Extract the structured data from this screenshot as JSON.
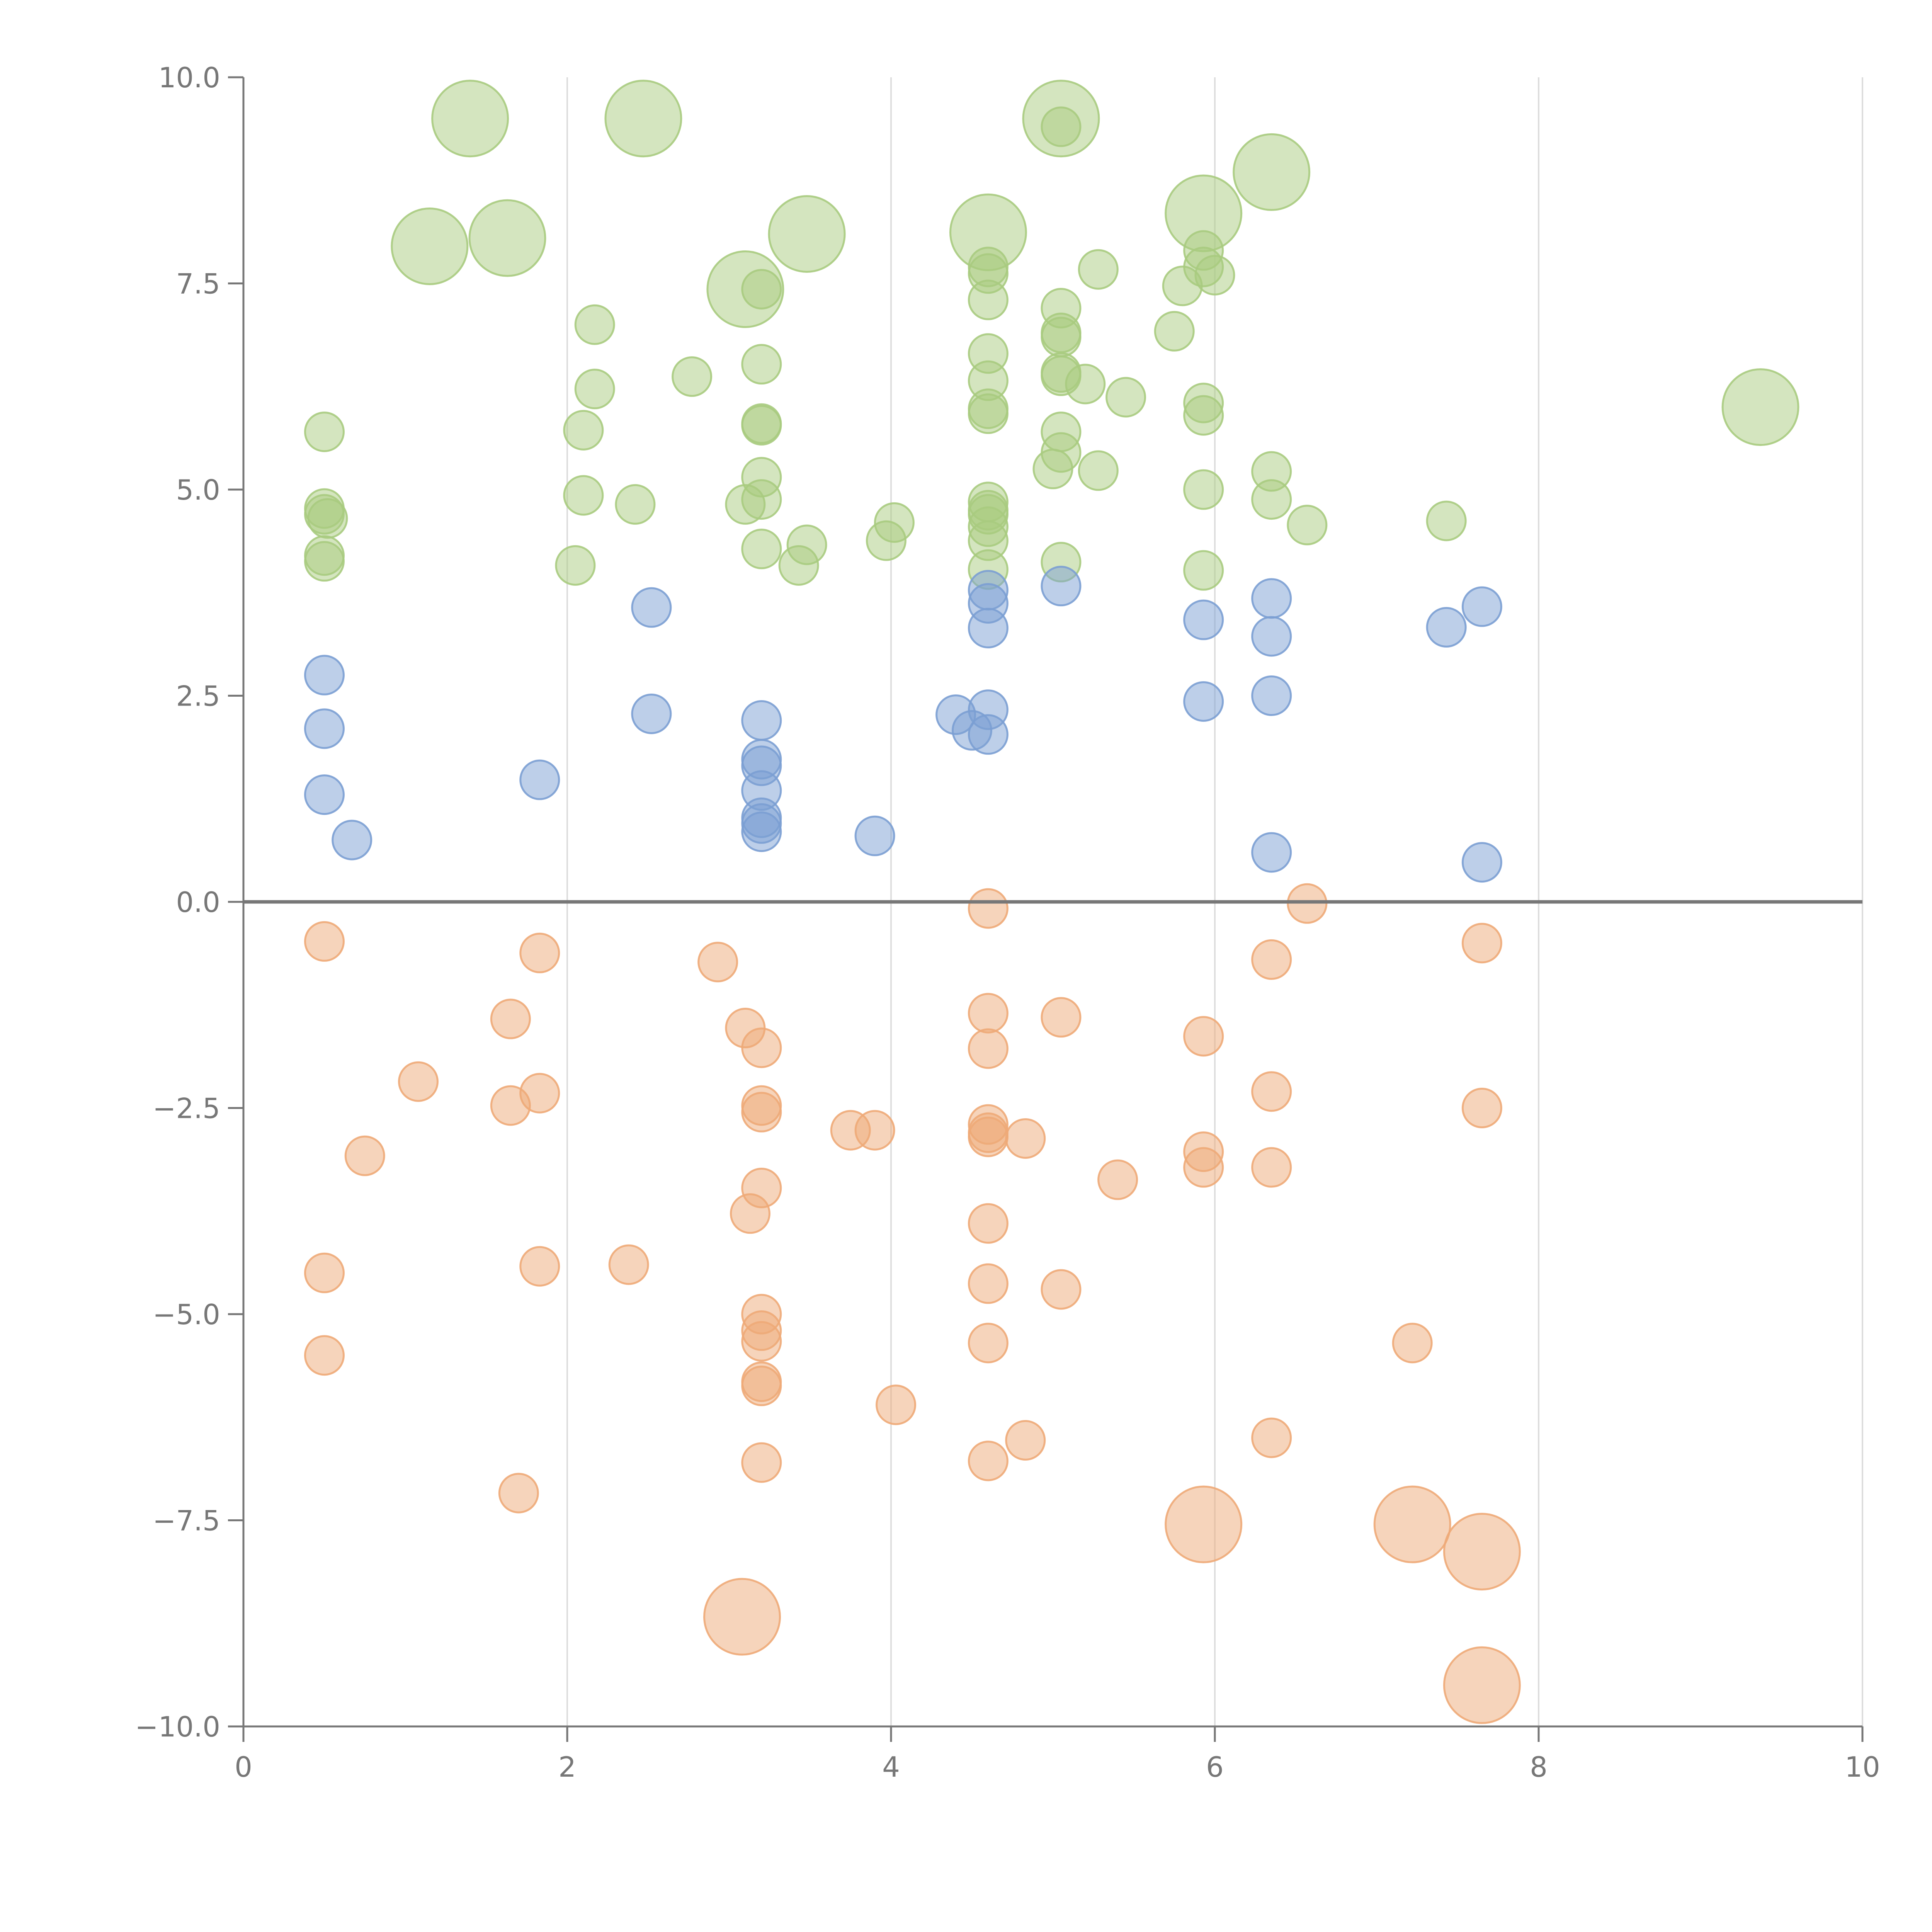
{
  "chart_data": {
    "type": "scatter",
    "title": "",
    "xlabel": "",
    "ylabel": "",
    "xlim": [
      0,
      10
    ],
    "ylim": [
      -10,
      10
    ],
    "x_ticks": [
      "0",
      "2",
      "4",
      "6",
      "8",
      "10"
    ],
    "y_ticks": [
      "10.0",
      "7.5",
      "5.0",
      "2.5",
      "0.0",
      "−2.5",
      "−5.0",
      "−7.5",
      "−10.0"
    ],
    "x_tick_values": [
      0,
      2,
      4,
      6,
      8,
      10
    ],
    "y_tick_values": [
      10,
      7.5,
      5,
      2.5,
      0,
      -2.5,
      -5,
      -7.5,
      -10
    ],
    "grid": "vertical",
    "legend": "none",
    "series": [
      {
        "color": "#a9cb7f",
        "points": [
          {
            "x": 1.4,
            "y": 9.5,
            "size": "large"
          },
          {
            "x": 2.47,
            "y": 9.5,
            "size": "large"
          },
          {
            "x": 5.05,
            "y": 9.5,
            "size": "large"
          },
          {
            "x": 5.05,
            "y": 9.4,
            "size": "small"
          },
          {
            "x": 6.35,
            "y": 8.85,
            "size": "large"
          },
          {
            "x": 5.93,
            "y": 8.35,
            "size": "large"
          },
          {
            "x": 1.15,
            "y": 7.95,
            "size": "large"
          },
          {
            "x": 1.63,
            "y": 8.05,
            "size": "large"
          },
          {
            "x": 3.48,
            "y": 8.1,
            "size": "large"
          },
          {
            "x": 4.6,
            "y": 8.12,
            "size": "large"
          },
          {
            "x": 3.1,
            "y": 7.43,
            "size": "large"
          },
          {
            "x": 9.37,
            "y": 6.0,
            "size": "large"
          },
          {
            "x": 4.6,
            "y": 7.7,
            "size": "small"
          },
          {
            "x": 4.6,
            "y": 7.62,
            "size": "small"
          },
          {
            "x": 4.6,
            "y": 7.3,
            "size": "small"
          },
          {
            "x": 5.28,
            "y": 7.67,
            "size": "small"
          },
          {
            "x": 5.93,
            "y": 7.9,
            "size": "small"
          },
          {
            "x": 5.93,
            "y": 7.7,
            "size": "small"
          },
          {
            "x": 6.0,
            "y": 7.6,
            "size": "small"
          },
          {
            "x": 5.8,
            "y": 7.47,
            "size": "small"
          },
          {
            "x": 3.2,
            "y": 7.43,
            "size": "small"
          },
          {
            "x": 2.17,
            "y": 7.0,
            "size": "small"
          },
          {
            "x": 5.05,
            "y": 7.2,
            "size": "small"
          },
          {
            "x": 5.05,
            "y": 6.9,
            "size": "small"
          },
          {
            "x": 5.05,
            "y": 6.85,
            "size": "small"
          },
          {
            "x": 5.75,
            "y": 6.92,
            "size": "small"
          },
          {
            "x": 4.6,
            "y": 6.65,
            "size": "small"
          },
          {
            "x": 3.2,
            "y": 6.52,
            "size": "small"
          },
          {
            "x": 2.77,
            "y": 6.37,
            "size": "small"
          },
          {
            "x": 4.6,
            "y": 6.32,
            "size": "small"
          },
          {
            "x": 5.05,
            "y": 6.38,
            "size": "small"
          },
          {
            "x": 5.05,
            "y": 6.42,
            "size": "small"
          },
          {
            "x": 5.2,
            "y": 6.28,
            "size": "small"
          },
          {
            "x": 5.45,
            "y": 6.12,
            "size": "small"
          },
          {
            "x": 2.17,
            "y": 6.22,
            "size": "small"
          },
          {
            "x": 4.6,
            "y": 5.98,
            "size": "small"
          },
          {
            "x": 4.6,
            "y": 5.92,
            "size": "small"
          },
          {
            "x": 5.93,
            "y": 6.05,
            "size": "small"
          },
          {
            "x": 5.93,
            "y": 5.9,
            "size": "small"
          },
          {
            "x": 3.2,
            "y": 5.8,
            "size": "small"
          },
          {
            "x": 3.2,
            "y": 5.78,
            "size": "small"
          },
          {
            "x": 2.1,
            "y": 5.72,
            "size": "small"
          },
          {
            "x": 0.5,
            "y": 5.7,
            "size": "small"
          },
          {
            "x": 5.05,
            "y": 5.7,
            "size": "small"
          },
          {
            "x": 5.05,
            "y": 5.45,
            "size": "small"
          },
          {
            "x": 5.0,
            "y": 5.25,
            "size": "small"
          },
          {
            "x": 5.28,
            "y": 5.23,
            "size": "small"
          },
          {
            "x": 6.35,
            "y": 5.22,
            "size": "small"
          },
          {
            "x": 3.2,
            "y": 5.15,
            "size": "small"
          },
          {
            "x": 5.93,
            "y": 5.0,
            "size": "small"
          },
          {
            "x": 2.1,
            "y": 4.93,
            "size": "small"
          },
          {
            "x": 3.2,
            "y": 4.88,
            "size": "small"
          },
          {
            "x": 6.35,
            "y": 4.88,
            "size": "small"
          },
          {
            "x": 3.1,
            "y": 4.82,
            "size": "small"
          },
          {
            "x": 2.42,
            "y": 4.82,
            "size": "small"
          },
          {
            "x": 4.6,
            "y": 4.85,
            "size": "small"
          },
          {
            "x": 4.6,
            "y": 4.75,
            "size": "small"
          },
          {
            "x": 4.6,
            "y": 4.7,
            "size": "small"
          },
          {
            "x": 0.5,
            "y": 4.77,
            "size": "small"
          },
          {
            "x": 0.5,
            "y": 4.7,
            "size": "small"
          },
          {
            "x": 0.52,
            "y": 4.65,
            "size": "small"
          },
          {
            "x": 7.43,
            "y": 4.62,
            "size": "small"
          },
          {
            "x": 4.02,
            "y": 4.6,
            "size": "small"
          },
          {
            "x": 6.57,
            "y": 4.57,
            "size": "small"
          },
          {
            "x": 4.6,
            "y": 4.55,
            "size": "small"
          },
          {
            "x": 4.6,
            "y": 4.38,
            "size": "small"
          },
          {
            "x": 3.48,
            "y": 4.33,
            "size": "small"
          },
          {
            "x": 3.97,
            "y": 4.38,
            "size": "small"
          },
          {
            "x": 3.2,
            "y": 4.28,
            "size": "small"
          },
          {
            "x": 0.5,
            "y": 4.2,
            "size": "small"
          },
          {
            "x": 0.5,
            "y": 4.13,
            "size": "small"
          },
          {
            "x": 5.05,
            "y": 4.12,
            "size": "small"
          },
          {
            "x": 2.05,
            "y": 4.08,
            "size": "small"
          },
          {
            "x": 3.43,
            "y": 4.08,
            "size": "small"
          },
          {
            "x": 4.6,
            "y": 4.03,
            "size": "small"
          },
          {
            "x": 5.93,
            "y": 4.02,
            "size": "small"
          }
        ]
      },
      {
        "color": "#7b9fd3",
        "points": [
          {
            "x": 5.05,
            "y": 3.83,
            "size": "small"
          },
          {
            "x": 4.6,
            "y": 3.78,
            "size": "small"
          },
          {
            "x": 4.6,
            "y": 3.62,
            "size": "small"
          },
          {
            "x": 6.35,
            "y": 3.68,
            "size": "small"
          },
          {
            "x": 7.65,
            "y": 3.58,
            "size": "small"
          },
          {
            "x": 2.52,
            "y": 3.57,
            "size": "small"
          },
          {
            "x": 5.93,
            "y": 3.42,
            "size": "small"
          },
          {
            "x": 7.43,
            "y": 3.33,
            "size": "small"
          },
          {
            "x": 4.6,
            "y": 3.32,
            "size": "small"
          },
          {
            "x": 6.35,
            "y": 3.22,
            "size": "small"
          },
          {
            "x": 0.5,
            "y": 2.75,
            "size": "small"
          },
          {
            "x": 6.35,
            "y": 2.5,
            "size": "small"
          },
          {
            "x": 5.93,
            "y": 2.43,
            "size": "small"
          },
          {
            "x": 4.6,
            "y": 2.33,
            "size": "small"
          },
          {
            "x": 4.4,
            "y": 2.27,
            "size": "small"
          },
          {
            "x": 2.52,
            "y": 2.28,
            "size": "small"
          },
          {
            "x": 3.2,
            "y": 2.2,
            "size": "small"
          },
          {
            "x": 0.5,
            "y": 2.1,
            "size": "small"
          },
          {
            "x": 4.5,
            "y": 2.08,
            "size": "small"
          },
          {
            "x": 4.6,
            "y": 2.03,
            "size": "small"
          },
          {
            "x": 3.2,
            "y": 1.73,
            "size": "small"
          },
          {
            "x": 3.2,
            "y": 1.65,
            "size": "small"
          },
          {
            "x": 1.83,
            "y": 1.48,
            "size": "small"
          },
          {
            "x": 3.2,
            "y": 1.35,
            "size": "small"
          },
          {
            "x": 0.5,
            "y": 1.3,
            "size": "small"
          },
          {
            "x": 3.2,
            "y": 1.02,
            "size": "small"
          },
          {
            "x": 3.2,
            "y": 0.95,
            "size": "small"
          },
          {
            "x": 3.2,
            "y": 0.85,
            "size": "small"
          },
          {
            "x": 3.9,
            "y": 0.8,
            "size": "small"
          },
          {
            "x": 0.67,
            "y": 0.75,
            "size": "small"
          },
          {
            "x": 6.35,
            "y": 0.6,
            "size": "small"
          },
          {
            "x": 7.65,
            "y": 0.48,
            "size": "small"
          }
        ]
      },
      {
        "color": "#eeaa78",
        "points": [
          {
            "x": 4.6,
            "y": -0.08,
            "size": "small"
          },
          {
            "x": 6.57,
            "y": -0.02,
            "size": "small"
          },
          {
            "x": 0.5,
            "y": -0.48,
            "size": "small"
          },
          {
            "x": 7.65,
            "y": -0.5,
            "size": "small"
          },
          {
            "x": 1.83,
            "y": -0.62,
            "size": "small"
          },
          {
            "x": 6.35,
            "y": -0.7,
            "size": "small"
          },
          {
            "x": 2.93,
            "y": -0.73,
            "size": "small"
          },
          {
            "x": 4.6,
            "y": -1.35,
            "size": "small"
          },
          {
            "x": 1.65,
            "y": -1.42,
            "size": "small"
          },
          {
            "x": 5.05,
            "y": -1.4,
            "size": "small"
          },
          {
            "x": 3.1,
            "y": -1.53,
            "size": "small"
          },
          {
            "x": 5.93,
            "y": -1.63,
            "size": "small"
          },
          {
            "x": 3.2,
            "y": -1.77,
            "size": "small"
          },
          {
            "x": 4.6,
            "y": -1.78,
            "size": "small"
          },
          {
            "x": 1.08,
            "y": -2.18,
            "size": "small"
          },
          {
            "x": 6.35,
            "y": -2.3,
            "size": "small"
          },
          {
            "x": 1.83,
            "y": -2.32,
            "size": "small"
          },
          {
            "x": 1.65,
            "y": -2.47,
            "size": "small"
          },
          {
            "x": 3.2,
            "y": -2.47,
            "size": "small"
          },
          {
            "x": 3.2,
            "y": -2.55,
            "size": "small"
          },
          {
            "x": 7.65,
            "y": -2.5,
            "size": "small"
          },
          {
            "x": 4.6,
            "y": -2.7,
            "size": "small"
          },
          {
            "x": 3.75,
            "y": -2.77,
            "size": "small"
          },
          {
            "x": 3.9,
            "y": -2.77,
            "size": "small"
          },
          {
            "x": 4.6,
            "y": -2.8,
            "size": "small"
          },
          {
            "x": 4.6,
            "y": -2.85,
            "size": "small"
          },
          {
            "x": 4.83,
            "y": -2.87,
            "size": "small"
          },
          {
            "x": 0.75,
            "y": -3.08,
            "size": "small"
          },
          {
            "x": 5.93,
            "y": -3.03,
            "size": "small"
          },
          {
            "x": 5.93,
            "y": -3.22,
            "size": "small"
          },
          {
            "x": 6.35,
            "y": -3.22,
            "size": "small"
          },
          {
            "x": 5.4,
            "y": -3.37,
            "size": "small"
          },
          {
            "x": 3.2,
            "y": -3.47,
            "size": "small"
          },
          {
            "x": 3.13,
            "y": -3.78,
            "size": "small"
          },
          {
            "x": 4.6,
            "y": -3.9,
            "size": "small"
          },
          {
            "x": 2.38,
            "y": -4.4,
            "size": "small"
          },
          {
            "x": 1.83,
            "y": -4.42,
            "size": "small"
          },
          {
            "x": 0.5,
            "y": -4.5,
            "size": "small"
          },
          {
            "x": 4.6,
            "y": -4.63,
            "size": "small"
          },
          {
            "x": 5.05,
            "y": -4.7,
            "size": "small"
          },
          {
            "x": 3.2,
            "y": -5.0,
            "size": "small"
          },
          {
            "x": 3.2,
            "y": -5.2,
            "size": "small"
          },
          {
            "x": 3.2,
            "y": -5.33,
            "size": "small"
          },
          {
            "x": 4.6,
            "y": -5.35,
            "size": "small"
          },
          {
            "x": 7.22,
            "y": -5.35,
            "size": "small"
          },
          {
            "x": 0.5,
            "y": -5.5,
            "size": "small"
          },
          {
            "x": 3.2,
            "y": -5.82,
            "size": "small"
          },
          {
            "x": 3.2,
            "y": -5.87,
            "size": "small"
          },
          {
            "x": 4.03,
            "y": -6.1,
            "size": "small"
          },
          {
            "x": 6.35,
            "y": -6.5,
            "size": "small"
          },
          {
            "x": 4.83,
            "y": -6.53,
            "size": "small"
          },
          {
            "x": 3.2,
            "y": -6.8,
            "size": "small"
          },
          {
            "x": 4.6,
            "y": -6.78,
            "size": "small"
          },
          {
            "x": 1.7,
            "y": -7.17,
            "size": "small"
          },
          {
            "x": 5.93,
            "y": -7.55,
            "size": "large"
          },
          {
            "x": 7.22,
            "y": -7.55,
            "size": "large"
          },
          {
            "x": 7.65,
            "y": -7.88,
            "size": "large"
          },
          {
            "x": 3.08,
            "y": -8.67,
            "size": "large"
          },
          {
            "x": 7.65,
            "y": -9.5,
            "size": "large"
          }
        ]
      }
    ]
  }
}
